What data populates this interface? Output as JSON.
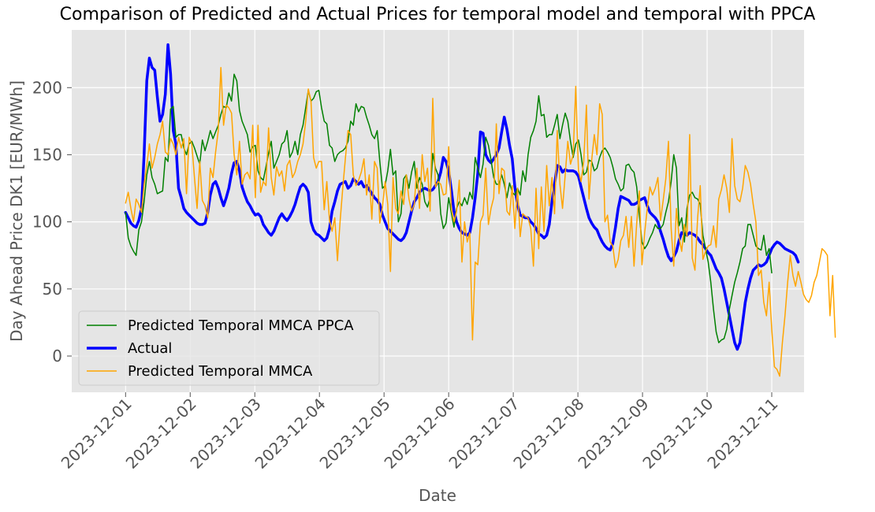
{
  "chart_data": {
    "type": "line",
    "title": "Comparison of Predicted and Actual Prices for temporal model and temporal with PPCA",
    "xlabel": "Date",
    "ylabel": "Day Ahead Price DK1 [EUR/MWh]",
    "xlim": [
      "2023-11-30T04:00",
      "2023-12-11T12:00"
    ],
    "ylim": [
      -27,
      243
    ],
    "x_ticks": [
      "2023-12-01",
      "2023-12-02",
      "2023-12-03",
      "2023-12-04",
      "2023-12-05",
      "2023-12-06",
      "2023-12-07",
      "2023-12-08",
      "2023-12-09",
      "2023-12-10",
      "2023-12-11"
    ],
    "y_ticks": [
      0,
      50,
      100,
      150,
      200
    ],
    "grid": true,
    "legend_placement": "lower-left",
    "x_sampling": "every 1.5 hours starting 2023-12-01 00:00",
    "series": [
      {
        "name": "Predicted Temporal MMCA PPCA",
        "color": "#008000",
        "width": 1.5,
        "values": [
          107,
          88,
          82,
          78,
          75,
          94,
          100,
          115,
          135,
          145,
          133,
          128,
          121,
          122,
          123,
          148,
          145,
          184,
          186,
          163,
          165,
          165,
          155,
          150,
          158,
          160,
          155,
          149,
          143,
          161,
          153,
          160,
          168,
          162,
          167,
          172,
          180,
          186,
          185,
          196,
          190,
          210,
          205,
          183,
          175,
          170,
          165,
          152,
          156,
          157,
          138,
          133,
          131,
          141,
          151,
          160,
          140,
          145,
          150,
          158,
          160,
          168,
          148,
          152,
          160,
          150,
          165,
          172,
          185,
          198,
          190,
          192,
          197,
          198,
          185,
          175,
          173,
          157,
          155,
          145,
          150,
          152,
          153,
          155,
          160,
          175,
          172,
          188,
          182,
          186,
          185,
          178,
          172,
          165,
          162,
          168,
          145,
          125,
          127,
          138,
          154,
          135,
          138,
          100,
          106,
          132,
          135,
          125,
          137,
          145,
          125,
          133,
          128,
          115,
          111,
          118,
          151,
          140,
          135,
          106,
          95,
          99,
          118,
          107,
          96,
          110,
          115,
          112,
          118,
          113,
          122,
          117,
          148,
          140,
          133,
          143,
          163,
          157,
          146,
          133,
          128,
          128,
          135,
          128,
          118,
          129,
          122,
          120,
          125,
          120,
          138,
          130,
          150,
          163,
          168,
          175,
          194,
          179,
          180,
          163,
          165,
          165,
          172,
          180,
          162,
          172,
          181,
          175,
          160,
          148,
          158,
          161,
          150,
          135,
          137,
          146,
          145,
          138,
          140,
          148,
          153,
          155,
          152,
          148,
          141,
          132,
          128,
          123,
          125,
          142,
          143,
          139,
          137,
          126,
          105,
          85,
          80,
          83,
          88,
          92,
          98,
          95,
          95,
          98,
          107,
          115,
          130,
          150,
          140,
          97,
          103,
          85,
          110,
          120,
          122,
          118,
          117,
          113,
          90,
          80,
          70,
          55,
          35,
          18,
          10,
          12,
          13,
          20,
          35,
          45,
          55,
          62,
          70,
          80,
          82,
          98,
          98,
          90,
          82,
          80,
          79,
          90,
          75,
          80,
          62
        ]
      },
      {
        "name": "Actual",
        "color": "#0000ff",
        "width": 3.5,
        "values": [
          107,
          103,
          99,
          97,
          96,
          101,
          110,
          150,
          205,
          222,
          215,
          213,
          193,
          175,
          180,
          195,
          232,
          210,
          168,
          158,
          125,
          118,
          110,
          107,
          105,
          103,
          101,
          99,
          98,
          98,
          99,
          107,
          120,
          128,
          130,
          125,
          118,
          112,
          118,
          125,
          136,
          144,
          145,
          138,
          126,
          120,
          115,
          112,
          108,
          105,
          106,
          104,
          98,
          95,
          92,
          90,
          93,
          98,
          103,
          106,
          103,
          101,
          104,
          108,
          113,
          120,
          126,
          128,
          126,
          122,
          100,
          94,
          91,
          90,
          88,
          86,
          88,
          95,
          108,
          115,
          123,
          128,
          129,
          130,
          125,
          127,
          132,
          130,
          128,
          130,
          126,
          127,
          124,
          121,
          118,
          116,
          113,
          105,
          100,
          95,
          93,
          91,
          89,
          87,
          86,
          88,
          92,
          100,
          108,
          115,
          118,
          122,
          124,
          125,
          124,
          123,
          124,
          127,
          130,
          137,
          148,
          145,
          138,
          124,
          108,
          100,
          95,
          92,
          91,
          90,
          92,
          103,
          118,
          136,
          167,
          166,
          150,
          146,
          144,
          147,
          150,
          155,
          167,
          178,
          169,
          157,
          147,
          126,
          113,
          105,
          104,
          103,
          103,
          100,
          98,
          95,
          91,
          90,
          88,
          90,
          98,
          115,
          128,
          142,
          141,
          137,
          139,
          138,
          138,
          138,
          137,
          134,
          126,
          118,
          110,
          103,
          99,
          96,
          94,
          89,
          85,
          82,
          80,
          79,
          84,
          96,
          110,
          119,
          118,
          117,
          116,
          113,
          113,
          114,
          116,
          117,
          118,
          112,
          107,
          105,
          103,
          100,
          93,
          87,
          80,
          74,
          71,
          74,
          78,
          86,
          92,
          91,
          90,
          92,
          91,
          90,
          88,
          85,
          83,
          80,
          77,
          75,
          70,
          65,
          62,
          58,
          50,
          40,
          30,
          20,
          10,
          5,
          10,
          25,
          40,
          50,
          58,
          64,
          66,
          68,
          67,
          68,
          70,
          75,
          80,
          83,
          85,
          84,
          82,
          80,
          79,
          78,
          77,
          75,
          70
        ]
      },
      {
        "name": "Predicted Temporal MMCA",
        "color": "#ffa500",
        "width": 1.5,
        "values": [
          114,
          122,
          110,
          100,
          117,
          113,
          107,
          128,
          142,
          158,
          140,
          148,
          158,
          165,
          175,
          152,
          150,
          162,
          158,
          150,
          163,
          155,
          162,
          121,
          163,
          158,
          133,
          110,
          145,
          116,
          112,
          103,
          140,
          133,
          152,
          168,
          215,
          172,
          187,
          185,
          181,
          150,
          135,
          160,
          128,
          135,
          137,
          132,
          172,
          118,
          172,
          122,
          130,
          127,
          170,
          133,
          120,
          141,
          134,
          138,
          123,
          142,
          146,
          133,
          137,
          145,
          150,
          158,
          175,
          199,
          190,
          148,
          140,
          145,
          145,
          109,
          130,
          101,
          93,
          103,
          71,
          100,
          125,
          147,
          168,
          165,
          135,
          127,
          131,
          137,
          147,
          120,
          135,
          102,
          145,
          140,
          99,
          111,
          130,
          113,
          63,
          133,
          110,
          106,
          123,
          113,
          135,
          117,
          108,
          113,
          140,
          110,
          150,
          130,
          140,
          108,
          192,
          126,
          130,
          128,
          120,
          121,
          156,
          110,
          100,
          108,
          131,
          70,
          100,
          85,
          92,
          12,
          70,
          68,
          100,
          105,
          140,
          98,
          110,
          118,
          173,
          121,
          140,
          138,
          108,
          105,
          127,
          95,
          125,
          89,
          106,
          104,
          103,
          95,
          67,
          125,
          80,
          126,
          93,
          142,
          112,
          133,
          106,
          168,
          128,
          110,
          135,
          160,
          143,
          150,
          201,
          138,
          130,
          145,
          187,
          117,
          146,
          165,
          150,
          188,
          180,
          100,
          105,
          85,
          82,
          66,
          72,
          86,
          90,
          104,
          81,
          104,
          67,
          99,
          123,
          68,
          92,
          110,
          126,
          120,
          125,
          133,
          101,
          116,
          132,
          160,
          95,
          67,
          110,
          89,
          78,
          98,
          89,
          165,
          73,
          64,
          103,
          127,
          72,
          78,
          82,
          83,
          97,
          81,
          117,
          124,
          135,
          125,
          107,
          162,
          127,
          117,
          115,
          125,
          142,
          137,
          128,
          113,
          100,
          60,
          64,
          40,
          30,
          55,
          20,
          -8,
          -10,
          -15,
          10,
          30,
          55,
          75,
          60,
          52,
          63,
          55,
          46,
          42,
          40,
          45,
          55,
          60,
          70,
          80,
          78,
          75,
          30,
          60,
          14
        ]
      }
    ]
  }
}
